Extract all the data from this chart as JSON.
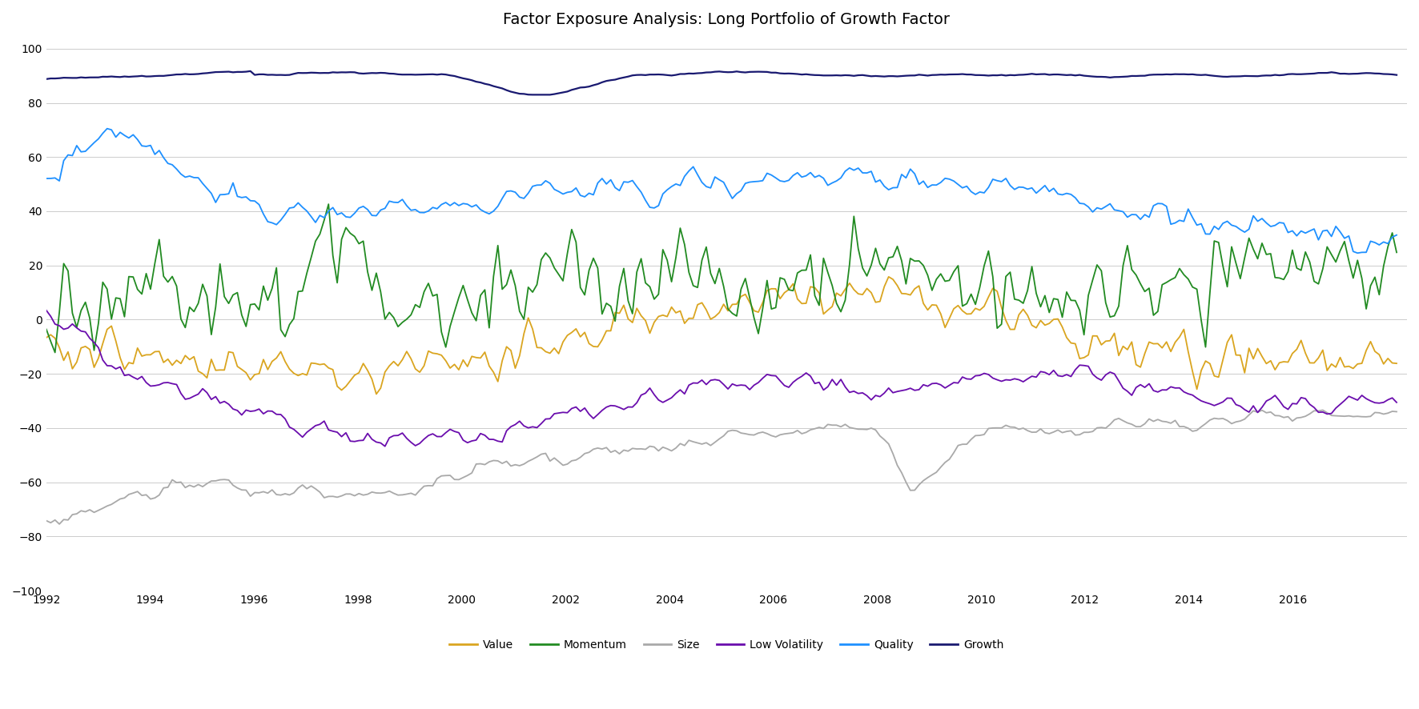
{
  "title": "Factor Exposure Analysis: Long Portfolio of Growth Factor",
  "ylim": [
    -100,
    105
  ],
  "yticks": [
    -100,
    -80,
    -60,
    -40,
    -20,
    0,
    20,
    40,
    60,
    80,
    100
  ],
  "xlim_start": 1992.0,
  "xlim_end": 2018.2,
  "xtick_years": [
    1992,
    1994,
    1996,
    1998,
    2000,
    2002,
    2004,
    2006,
    2008,
    2010,
    2012,
    2014,
    2016
  ],
  "line_colors": {
    "Value": "#DAA520",
    "Momentum": "#228B22",
    "Size": "#A9A9A9",
    "Low Volatility": "#6A0DAD",
    "Quality": "#1E90FF",
    "Growth": "#191970"
  },
  "line_widths": {
    "Value": 1.3,
    "Momentum": 1.3,
    "Size": 1.3,
    "Low Volatility": 1.3,
    "Quality": 1.3,
    "Growth": 1.6
  },
  "legend_order": [
    "Value",
    "Momentum",
    "Size",
    "Low Volatility",
    "Quality",
    "Growth"
  ],
  "background_color": "#FFFFFF",
  "grid_color": "#CCCCCC",
  "title_fontsize": 14,
  "legend_fontsize": 10,
  "axis_fontsize": 10
}
